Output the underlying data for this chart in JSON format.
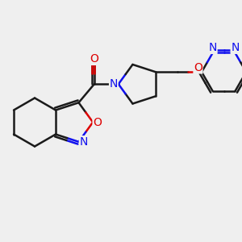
{
  "bg": "#efefef",
  "bc": "#1a1a1a",
  "nc": "#1010ee",
  "oc": "#dd0000",
  "lw": 1.8,
  "fs": 10,
  "xlim": [
    -0.5,
    9.5
  ],
  "ylim": [
    0.5,
    7.0
  ]
}
